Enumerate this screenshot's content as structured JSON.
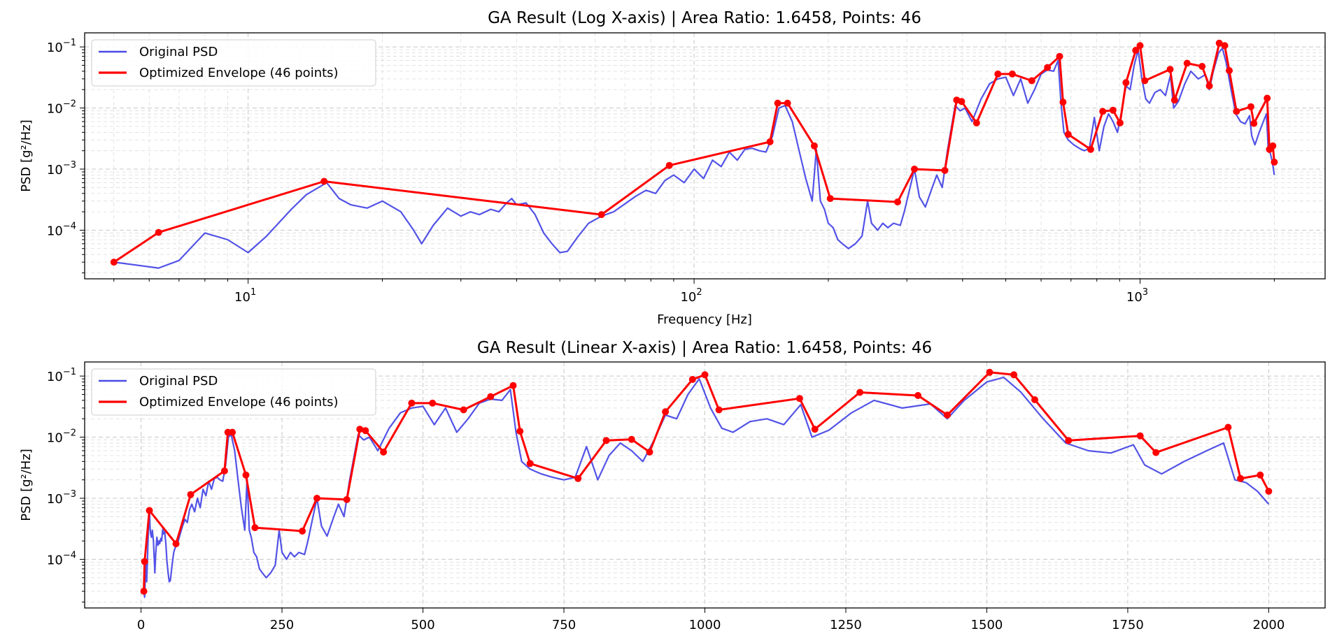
{
  "chart_data": [
    {
      "type": "line",
      "title": "GA Result (Log X-axis) | Area Ratio: 1.6458, Points: 46",
      "xlabel": "Frequency [Hz]",
      "ylabel": "PSD [g²/Hz]",
      "xscale": "log",
      "yscale": "log",
      "xlim": [
        4.3,
        2600
      ],
      "ylim": [
        1.6e-05,
        0.17
      ],
      "grid": true,
      "legend_position": "top-left",
      "xticks": [
        {
          "value": 10,
          "base": "10",
          "exp": "1"
        },
        {
          "value": 100,
          "base": "10",
          "exp": "2"
        },
        {
          "value": 1000,
          "base": "10",
          "exp": "3"
        }
      ],
      "yticks": [
        {
          "value": 0.0001,
          "base": "10",
          "exp": "−4"
        },
        {
          "value": 0.001,
          "base": "10",
          "exp": "−3"
        },
        {
          "value": 0.01,
          "base": "10",
          "exp": "−2"
        },
        {
          "value": 0.1,
          "base": "10",
          "exp": "−1"
        }
      ],
      "series": [
        {
          "name": "Original PSD",
          "role": "psd",
          "color": "#4a4ae6"
        },
        {
          "name": "Optimized Envelope (46 points)",
          "role": "envelope",
          "color": "#ff0000"
        }
      ]
    },
    {
      "type": "line",
      "title": "GA Result (Linear X-axis) | Area Ratio: 1.6458, Points: 46",
      "xlabel": "",
      "ylabel": "PSD [g²/Hz]",
      "xscale": "linear",
      "yscale": "log",
      "xlim": [
        -100,
        2100
      ],
      "ylim": [
        1.6e-05,
        0.17
      ],
      "grid": true,
      "legend_position": "top-left",
      "xticks": [
        {
          "value": 0,
          "label": "0"
        },
        {
          "value": 250,
          "label": "250"
        },
        {
          "value": 500,
          "label": "500"
        },
        {
          "value": 750,
          "label": "750"
        },
        {
          "value": 1000,
          "label": "1000"
        },
        {
          "value": 1250,
          "label": "1250"
        },
        {
          "value": 1500,
          "label": "1500"
        },
        {
          "value": 1750,
          "label": "1750"
        },
        {
          "value": 2000,
          "label": "2000"
        }
      ],
      "yticks": [
        {
          "value": 0.0001,
          "base": "10",
          "exp": "−4"
        },
        {
          "value": 0.001,
          "base": "10",
          "exp": "−3"
        },
        {
          "value": 0.01,
          "base": "10",
          "exp": "−2"
        },
        {
          "value": 0.1,
          "base": "10",
          "exp": "−1"
        }
      ],
      "series": [
        {
          "name": "Original PSD",
          "role": "psd",
          "color": "#4a4ae6"
        },
        {
          "name": "Optimized Envelope (46 points)",
          "role": "envelope",
          "color": "#ff0000"
        }
      ]
    }
  ],
  "shared_series_data": {
    "original_psd": [
      [
        5,
        3e-05
      ],
      [
        6.3,
        2.4e-05
      ],
      [
        7,
        3.2e-05
      ],
      [
        8,
        9e-05
      ],
      [
        9,
        7e-05
      ],
      [
        10,
        4.3e-05
      ],
      [
        11,
        8e-05
      ],
      [
        12.5,
        0.00022
      ],
      [
        13.5,
        0.00038
      ],
      [
        15,
        0.0006
      ],
      [
        16,
        0.00033
      ],
      [
        17,
        0.00026
      ],
      [
        18.5,
        0.00023
      ],
      [
        20,
        0.0003
      ],
      [
        22,
        0.0002
      ],
      [
        23.5,
        0.0001
      ],
      [
        24.5,
        6e-05
      ],
      [
        26,
        0.00012
      ],
      [
        28,
        0.00023
      ],
      [
        30,
        0.00017
      ],
      [
        31.5,
        0.0002
      ],
      [
        33,
        0.00018
      ],
      [
        35,
        0.00022
      ],
      [
        36.5,
        0.0002
      ],
      [
        38,
        0.00028
      ],
      [
        39,
        0.00033
      ],
      [
        40,
        0.00026
      ],
      [
        42,
        0.00028
      ],
      [
        44,
        0.00018
      ],
      [
        46,
        9e-05
      ],
      [
        48,
        6e-05
      ],
      [
        50,
        4.3e-05
      ],
      [
        52,
        4.5e-05
      ],
      [
        55,
        8e-05
      ],
      [
        58,
        0.00013
      ],
      [
        62,
        0.00017
      ],
      [
        66,
        0.0002
      ],
      [
        70,
        0.00027
      ],
      [
        74,
        0.00036
      ],
      [
        78,
        0.00045
      ],
      [
        82,
        0.0004
      ],
      [
        86,
        0.00065
      ],
      [
        90,
        0.0008
      ],
      [
        95,
        0.0006
      ],
      [
        100,
        0.001
      ],
      [
        105,
        0.0007
      ],
      [
        110,
        0.0014
      ],
      [
        115,
        0.0011
      ],
      [
        120,
        0.0019
      ],
      [
        125,
        0.0014
      ],
      [
        130,
        0.0021
      ],
      [
        135,
        0.0022
      ],
      [
        140,
        0.002
      ],
      [
        145,
        0.0019
      ],
      [
        150,
        0.0035
      ],
      [
        155,
        0.01
      ],
      [
        160,
        0.011
      ],
      [
        166,
        0.006
      ],
      [
        172,
        0.002
      ],
      [
        178,
        0.0007
      ],
      [
        184,
        0.0003
      ],
      [
        188,
        0.0021
      ],
      [
        192,
        0.0003
      ],
      [
        196,
        0.00022
      ],
      [
        200,
        0.00013
      ],
      [
        205,
        0.00011
      ],
      [
        210,
        7e-05
      ],
      [
        215,
        6e-05
      ],
      [
        222,
        5e-05
      ],
      [
        230,
        6e-05
      ],
      [
        238,
        8e-05
      ],
      [
        245,
        0.0003
      ],
      [
        250,
        0.00013
      ],
      [
        258,
        0.0001
      ],
      [
        265,
        0.00013
      ],
      [
        272,
        0.00011
      ],
      [
        280,
        0.00013
      ],
      [
        290,
        0.00012
      ],
      [
        296,
        0.0002
      ],
      [
        305,
        0.0005
      ],
      [
        312,
        0.001
      ],
      [
        320,
        0.00035
      ],
      [
        330,
        0.00024
      ],
      [
        342,
        0.0005
      ],
      [
        350,
        0.0008
      ],
      [
        360,
        0.0005
      ],
      [
        370,
        0.002
      ],
      [
        385,
        0.011
      ],
      [
        395,
        0.009
      ],
      [
        405,
        0.01
      ],
      [
        420,
        0.006
      ],
      [
        440,
        0.014
      ],
      [
        460,
        0.025
      ],
      [
        480,
        0.03
      ],
      [
        500,
        0.032
      ],
      [
        520,
        0.016
      ],
      [
        540,
        0.03
      ],
      [
        560,
        0.012
      ],
      [
        580,
        0.02
      ],
      [
        600,
        0.036
      ],
      [
        620,
        0.042
      ],
      [
        640,
        0.04
      ],
      [
        655,
        0.06
      ],
      [
        665,
        0.012
      ],
      [
        675,
        0.004
      ],
      [
        690,
        0.003
      ],
      [
        710,
        0.0025
      ],
      [
        730,
        0.0022
      ],
      [
        750,
        0.002
      ],
      [
        770,
        0.0022
      ],
      [
        790,
        0.007
      ],
      [
        810,
        0.002
      ],
      [
        830,
        0.005
      ],
      [
        850,
        0.008
      ],
      [
        870,
        0.006
      ],
      [
        890,
        0.004
      ],
      [
        910,
        0.009
      ],
      [
        930,
        0.023
      ],
      [
        950,
        0.02
      ],
      [
        970,
        0.05
      ],
      [
        990,
        0.09
      ],
      [
        1010,
        0.03
      ],
      [
        1030,
        0.014
      ],
      [
        1050,
        0.012
      ],
      [
        1080,
        0.018
      ],
      [
        1110,
        0.02
      ],
      [
        1140,
        0.016
      ],
      [
        1170,
        0.034
      ],
      [
        1190,
        0.01
      ],
      [
        1220,
        0.013
      ],
      [
        1260,
        0.025
      ],
      [
        1300,
        0.04
      ],
      [
        1350,
        0.03
      ],
      [
        1400,
        0.035
      ],
      [
        1430,
        0.02
      ],
      [
        1460,
        0.04
      ],
      [
        1500,
        0.08
      ],
      [
        1530,
        0.095
      ],
      [
        1560,
        0.055
      ],
      [
        1600,
        0.02
      ],
      [
        1640,
        0.008
      ],
      [
        1680,
        0.006
      ],
      [
        1720,
        0.0055
      ],
      [
        1760,
        0.0075
      ],
      [
        1780,
        0.0035
      ],
      [
        1810,
        0.0025
      ],
      [
        1850,
        0.004
      ],
      [
        1890,
        0.006
      ],
      [
        1920,
        0.008
      ],
      [
        1940,
        0.002
      ],
      [
        1960,
        0.0018
      ],
      [
        1980,
        0.0013
      ],
      [
        2000,
        0.0008
      ]
    ],
    "envelope_points": [
      [
        5,
        3e-05
      ],
      [
        6.3,
        9.2e-05
      ],
      [
        14.8,
        0.00063
      ],
      [
        62,
        0.00018
      ],
      [
        88,
        0.00115
      ],
      [
        148,
        0.0028
      ],
      [
        154,
        0.012
      ],
      [
        162,
        0.012
      ],
      [
        186,
        0.0024
      ],
      [
        202,
        0.00033
      ],
      [
        286,
        0.00029
      ],
      [
        312,
        0.001
      ],
      [
        365,
        0.00095
      ],
      [
        388,
        0.0135
      ],
      [
        398,
        0.0128
      ],
      [
        430,
        0.0057
      ],
      [
        480,
        0.036
      ],
      [
        517,
        0.036
      ],
      [
        572,
        0.028
      ],
      [
        620,
        0.046
      ],
      [
        660,
        0.07
      ],
      [
        672,
        0.0125
      ],
      [
        690,
        0.0037
      ],
      [
        775,
        0.0021
      ],
      [
        825,
        0.0088
      ],
      [
        870,
        0.0092
      ],
      [
        902,
        0.0057
      ],
      [
        930,
        0.026
      ],
      [
        978,
        0.088
      ],
      [
        1000,
        0.105
      ],
      [
        1025,
        0.028
      ],
      [
        1168,
        0.043
      ],
      [
        1195,
        0.0135
      ],
      [
        1275,
        0.054
      ],
      [
        1378,
        0.048
      ],
      [
        1430,
        0.023
      ],
      [
        1505,
        0.115
      ],
      [
        1548,
        0.105
      ],
      [
        1585,
        0.041
      ],
      [
        1645,
        0.0088
      ],
      [
        1772,
        0.0105
      ],
      [
        1800,
        0.0056
      ],
      [
        1928,
        0.0145
      ],
      [
        1950,
        0.0021
      ],
      [
        1985,
        0.0024
      ],
      [
        2000,
        0.0013
      ]
    ]
  }
}
